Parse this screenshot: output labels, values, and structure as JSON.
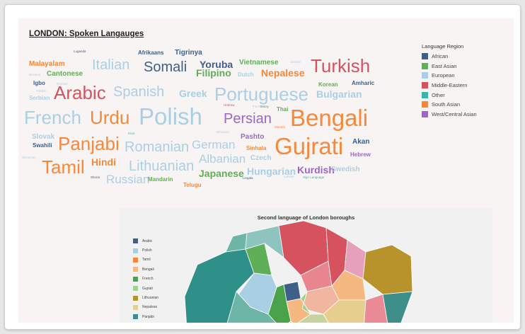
{
  "title": "LONDON: Spoken Langauges",
  "colors": {
    "African": "#3e5f87",
    "East Asian": "#5fae58",
    "European": "#a9cfe5",
    "Middle-Eastern": "#d6525f",
    "Other": "#3bb5a9",
    "South Asian": "#f5883a",
    "West/Central Asian": "#9a68c3"
  },
  "legend": {
    "title": "Language Region",
    "items": [
      "African",
      "East Asian",
      "European",
      "Middle-Eastern",
      "Other",
      "South Asian",
      "West/Central Asian"
    ]
  },
  "chart_data": [
    {
      "type": "word cloud",
      "title": "LONDON: Spoken Langauges",
      "legend_title": "Language Region",
      "words": [
        {
          "text": "Luganda",
          "region": "African",
          "relative_size": 1
        },
        {
          "text": "Afrikaans",
          "region": "African",
          "relative_size": 2
        },
        {
          "text": "Tigrinya",
          "region": "African",
          "relative_size": 3
        },
        {
          "text": "Yoruba",
          "region": "African",
          "relative_size": 4
        },
        {
          "text": "Vietnamese",
          "region": "East Asian",
          "relative_size": 3
        },
        {
          "text": "Danish",
          "region": "European",
          "relative_size": 1
        },
        {
          "text": "Malayalam",
          "region": "South Asian",
          "relative_size": 3
        },
        {
          "text": "Italian",
          "region": "European",
          "relative_size": 6
        },
        {
          "text": "Somali",
          "region": "African",
          "relative_size": 6
        },
        {
          "text": "Filipino",
          "region": "East Asian",
          "relative_size": 4
        },
        {
          "text": "Dutch",
          "region": "European",
          "relative_size": 2
        },
        {
          "text": "Nepalese",
          "region": "South Asian",
          "relative_size": 4
        },
        {
          "text": "Turkish",
          "region": "Middle-Eastern",
          "relative_size": 7
        },
        {
          "text": "Bosnian",
          "region": "European",
          "relative_size": 1
        },
        {
          "text": "Cantonese",
          "region": "East Asian",
          "relative_size": 3
        },
        {
          "text": "Igbo",
          "region": "African",
          "relative_size": 2
        },
        {
          "text": "Romani",
          "region": "European",
          "relative_size": 1
        },
        {
          "text": "Korean",
          "region": "East Asian",
          "relative_size": 2
        },
        {
          "text": "Amharic",
          "region": "African",
          "relative_size": 2
        },
        {
          "text": "Yiddish",
          "region": "European",
          "relative_size": 1
        },
        {
          "text": "Arabic",
          "region": "Middle-Eastern",
          "relative_size": 7
        },
        {
          "text": "Spanish",
          "region": "European",
          "relative_size": 6
        },
        {
          "text": "Greek",
          "region": "European",
          "relative_size": 4
        },
        {
          "text": "Portuguese",
          "region": "European",
          "relative_size": 7
        },
        {
          "text": "Bulgarian",
          "region": "European",
          "relative_size": 4
        },
        {
          "text": "Serbian",
          "region": "European",
          "relative_size": 2
        },
        {
          "text": "Hebrew",
          "region": "Middle-Eastern",
          "relative_size": 1
        },
        {
          "text": "Finnish",
          "region": "European",
          "relative_size": 1
        },
        {
          "text": "Malay",
          "region": "East Asian",
          "relative_size": 1
        },
        {
          "text": "Thai",
          "region": "East Asian",
          "relative_size": 2
        },
        {
          "text": "French",
          "region": "European",
          "relative_size": 7
        },
        {
          "text": "Urdu",
          "region": "South Asian",
          "relative_size": 7
        },
        {
          "text": "Polish",
          "region": "European",
          "relative_size": 9
        },
        {
          "text": "Persian",
          "region": "West/Central Asian",
          "relative_size": 6
        },
        {
          "text": "Bengali",
          "region": "South Asian",
          "relative_size": 9
        },
        {
          "text": "Ukrainian",
          "region": "European",
          "relative_size": 1
        },
        {
          "text": "Marathi",
          "region": "South Asian",
          "relative_size": 1
        },
        {
          "text": "Slovak",
          "region": "European",
          "relative_size": 3
        },
        {
          "text": "Kriol",
          "region": "Other",
          "relative_size": 1
        },
        {
          "text": "Pashto",
          "region": "West/Central Asian",
          "relative_size": 3
        },
        {
          "text": "Swahili",
          "region": "African",
          "relative_size": 2
        },
        {
          "text": "Panjabi",
          "region": "South Asian",
          "relative_size": 7
        },
        {
          "text": "Romanian",
          "region": "European",
          "relative_size": 6
        },
        {
          "text": "German",
          "region": "European",
          "relative_size": 5
        },
        {
          "text": "Sinhala",
          "region": "South Asian",
          "relative_size": 2
        },
        {
          "text": "Gujrati",
          "region": "South Asian",
          "relative_size": 9
        },
        {
          "text": "Akan",
          "region": "African",
          "relative_size": 3
        },
        {
          "text": "Slovenian",
          "region": "European",
          "relative_size": 1
        },
        {
          "text": "Czech",
          "region": "European",
          "relative_size": 3
        },
        {
          "text": "Hebrew",
          "region": "West/Central Asian",
          "relative_size": 2
        },
        {
          "text": "Tamil",
          "region": "South Asian",
          "relative_size": 7
        },
        {
          "text": "Hindi",
          "region": "South Asian",
          "relative_size": 4
        },
        {
          "text": "Lithuanian",
          "region": "European",
          "relative_size": 6
        },
        {
          "text": "Albanian",
          "region": "European",
          "relative_size": 5
        },
        {
          "text": "Hungarian",
          "region": "European",
          "relative_size": 4
        },
        {
          "text": "Kurdish",
          "region": "West/Central Asian",
          "relative_size": 4
        },
        {
          "text": "Swedish",
          "region": "European",
          "relative_size": 3
        },
        {
          "text": "Shona",
          "region": "African",
          "relative_size": 1
        },
        {
          "text": "Russian",
          "region": "European",
          "relative_size": 5
        },
        {
          "text": "Mandarin",
          "region": "East Asian",
          "relative_size": 2
        },
        {
          "text": "Japanese",
          "region": "East Asian",
          "relative_size": 4
        },
        {
          "text": "Lingala",
          "region": "African",
          "relative_size": 1
        },
        {
          "text": "Latvian",
          "region": "European",
          "relative_size": 1
        },
        {
          "text": "Sign Language",
          "region": "Other",
          "relative_size": 1
        },
        {
          "text": "Telugu",
          "region": "South Asian",
          "relative_size": 2
        }
      ]
    },
    {
      "type": "map",
      "title": "Second language of London boroughs",
      "legend": [
        {
          "label": "Arabic",
          "color": "#3e5f87"
        },
        {
          "label": "Polish",
          "color": "#a9cfe5"
        },
        {
          "label": "Tamil",
          "color": "#f5883a"
        },
        {
          "label": "Bengali",
          "color": "#f5b880"
        },
        {
          "label": "French",
          "color": "#4aa24a"
        },
        {
          "label": "Gujrati",
          "color": "#9ed28f"
        },
        {
          "label": "Lithuanian",
          "color": "#b8922a"
        },
        {
          "label": "Nepalese",
          "color": "#e6cf8e"
        },
        {
          "label": "Panjabi",
          "color": "#3e8f8a"
        }
      ],
      "regions": [
        {
          "color": "#2f8f89"
        },
        {
          "color": "#6db5a7"
        },
        {
          "color": "#5fae58"
        },
        {
          "color": "#8dc4bf"
        },
        {
          "color": "#d6525f"
        },
        {
          "color": "#e8858f"
        },
        {
          "color": "#d6525f"
        },
        {
          "color": "#e6a0ba"
        },
        {
          "color": "#b8922a"
        },
        {
          "color": "#f5b880"
        },
        {
          "color": "#f0b6a0"
        },
        {
          "color": "#ea8a94"
        },
        {
          "color": "#3e5f87"
        },
        {
          "color": "#4aa24a"
        },
        {
          "color": "#a9cfe5"
        },
        {
          "color": "#f5b880"
        },
        {
          "color": "#9ed28f"
        },
        {
          "color": "#3e8f8a"
        },
        {
          "color": "#e6cf8e"
        },
        {
          "color": "#c8d1a0"
        },
        {
          "color": "#a9cfe5"
        },
        {
          "color": "#6db5a7"
        }
      ]
    }
  ]
}
